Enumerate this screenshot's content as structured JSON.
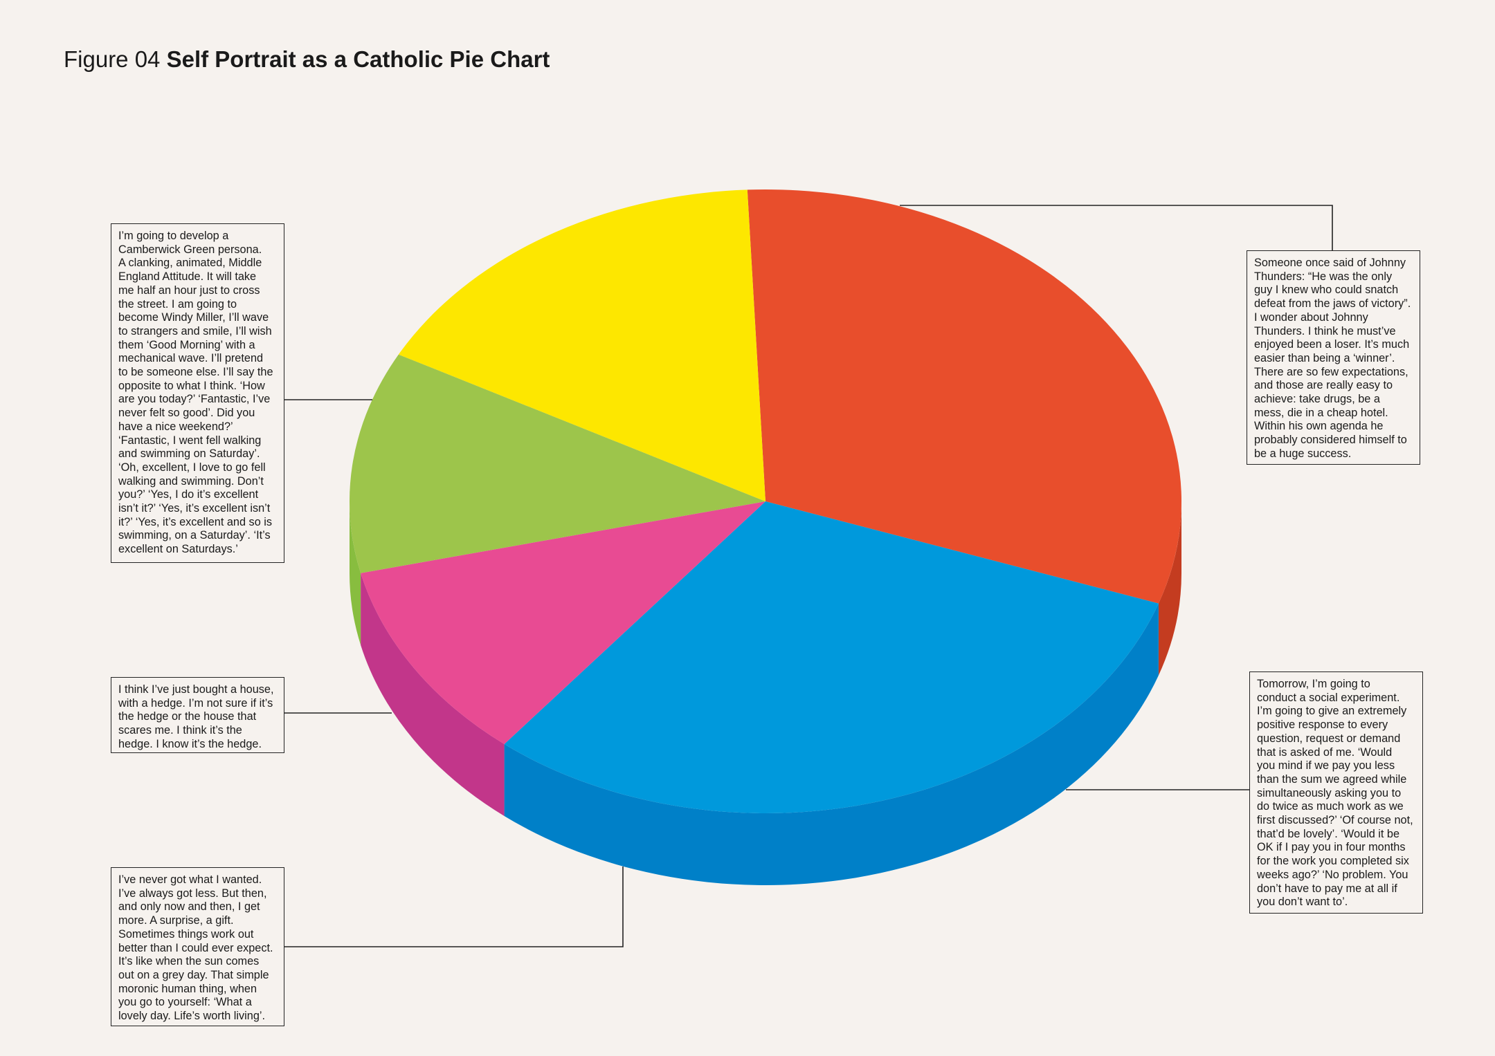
{
  "title": {
    "prefix": "Figure 04",
    "main": "Self Portrait as a Catholic Pie Chart"
  },
  "chart_data": {
    "type": "pie",
    "title": "Figure 04 Self Portrait as a Catholic Pie Chart",
    "style": "3d",
    "slices": [
      {
        "id": "red",
        "value": 31.0,
        "color": "#e84e2c",
        "side_color": "#c43c20"
      },
      {
        "id": "blue",
        "value": 30.5,
        "color": "#0099dc",
        "side_color": "#0080c8"
      },
      {
        "id": "magenta",
        "value": 10.5,
        "color": "#e84b93",
        "side_color": "#c2368a"
      },
      {
        "id": "green",
        "value": 11.5,
        "color": "#9dc54b",
        "side_color": "#88bd3f"
      },
      {
        "id": "yellow",
        "value": 16.5,
        "color": "#fde700",
        "side_color": "#e6d000"
      }
    ],
    "annotations": [
      {
        "slice": "red",
        "text": "Someone once said of Johnny Thunders: “He was the only guy I knew who could snatch defeat from the jaws of victory”. I wonder about Johnny Thunders. I think he must’ve enjoyed been a loser. It’s much easier than being a ‘winner’. There are so few expectations, and those are really easy to achieve: take drugs, be a mess, die in a cheap hotel. Within his own agenda he probably considered himself to be a huge success."
      },
      {
        "slice": "blue",
        "text": "Tomorrow, I’m going to conduct a social experiment. I’m going to give an extremely positive response to every question, request or demand that is asked of me. ‘Would you mind if we pay you less than the sum we agreed while simultaneously asking you to do twice as much work as we first discussed?’ ‘Of course not, that’d be lovely’. ‘Would it be OK if I pay you in four months for the work you completed six weeks ago?’ ‘No problem. You don’t have to pay me at all if you don’t want to’."
      },
      {
        "slice": "magenta",
        "text": "I’ve never got what I wanted. I’ve always got less. But then, and only now and then, I get more. A surprise, a gift. Sometimes things work out better than I could ever expect. It’s like when the sun comes out on a grey day. That simple moronic human thing, when you go to yourself: ‘What a lovely day. Life’s worth living’."
      },
      {
        "slice": "green",
        "text": "I think I’ve just bought a house, with a hedge. I’m not sure if it’s the hedge or the house that scares me. I think it’s the hedge. I know it’s the hedge."
      },
      {
        "slice": "yellow",
        "text": "I’m going to develop a Camberwick Green persona. A clanking, animated, Middle England Attitude. It will take me half an hour just to cross the street. I am going to become Windy Miller, I’ll wave to strangers and smile, I’ll wish them ‘Good Morning’ with a mechanical wave. I’ll pretend to be someone else. I’ll say the opposite to what I think. ‘How are you today?’ ‘Fantastic, I’ve never felt so good’. Did you have a nice weekend?’ ‘Fantastic, I went fell walking and swimming on Saturday’. ‘Oh, excellent, I love to go fell walking and swimming. Don’t you?’ ‘Yes, I do it’s excellent isn’t it?’ ‘Yes, it’s excellent isn’t it?’ ‘Yes, it’s excellent and so is swimming, on a Saturday’. ‘It’s excellent on Saturdays.’"
      }
    ]
  },
  "notes": {
    "yellow": "I’m going to develop a\nCamberwick Green persona.\nA clanking, animated, Middle\nEngland Attitude. It will take\nme half an hour just to cross\nthe street. I am going to\nbecome Windy Miller, I’ll wave\nto strangers and smile, I’ll wish\nthem ‘Good Morning’ with a\nmechanical wave. I’ll pretend\nto be someone else. I’ll say the\nopposite to what I think. ‘How\nare you today?’ ‘Fantastic, I’ve\nnever felt so good’. Did you\nhave a nice weekend?’\n‘Fantastic, I went fell walking\nand swimming on Saturday’.\n‘Oh, excellent, I love to go fell\nwalking and swimming. Don’t\nyou?’ ‘Yes, I do it’s excellent\nisn’t it?’ ‘Yes, it’s excellent isn’t\nit?’ ‘Yes, it’s excellent and so is\nswimming, on a Saturday’. ‘It’s\nexcellent on Saturdays.’",
    "green": "I think I’ve just bought a house,\nwith a hedge. I’m not sure if it’s\nthe hedge or the house that\nscares me. I think it’s the\nhedge. I know it’s the hedge.",
    "magenta": "I’ve never got what I wanted.\nI’ve always got less. But then,\nand only now and then, I get\nmore. A surprise, a gift.\nSometimes things work out\nbetter than I could ever expect.\nIt’s like when the sun comes\nout on a grey day. That simple\nmoronic human thing, when\nyou go to yourself: ‘What a\nlovely day. Life’s worth living’.",
    "red": "Someone once said of Johnny\nThunders: “He was the only\nguy I knew who could snatch\ndefeat from the jaws of victory”.\nI wonder about Johnny\nThunders. I think he must’ve\nenjoyed been a loser. It’s much\neasier than being a ‘winner’.\nThere are so few expectations,\nand those are really easy to\nachieve: take drugs, be a\nmess, die in a cheap hotel.\nWithin his own agenda he\nprobably considered himself to\nbe a huge success.",
    "blue": "Tomorrow, I’m going to\nconduct a social experiment.\nI’m going to give an extremely\npositive response to every\nquestion, request or demand\nthat is asked of me. ‘Would\nyou mind if we pay you less\nthan the sum we agreed while\nsimultaneously asking you to\ndo twice as much work as we\nfirst discussed?’ ‘Of course not,\nthat’d be lovely’. ‘Would it be\nOK if I pay you in four months\nfor the work you completed six\nweeks ago?’ ‘No problem. You\ndon’t have to pay me at all if\nyou don’t want to’."
  }
}
